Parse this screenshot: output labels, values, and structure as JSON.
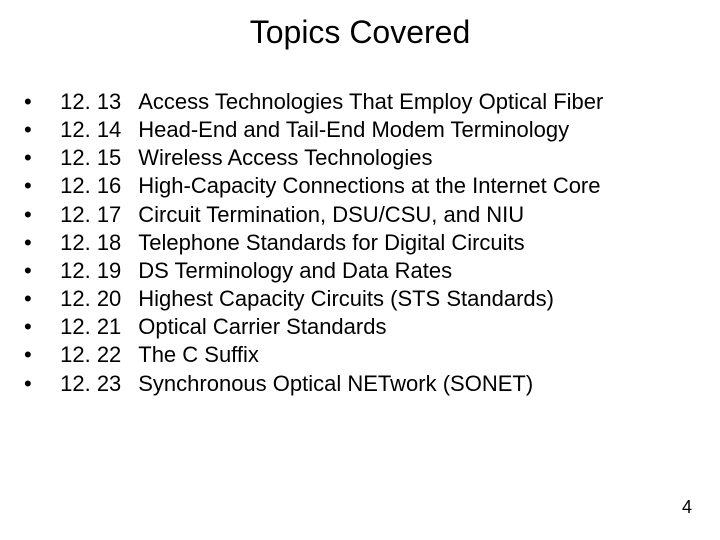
{
  "title": "Topics Covered",
  "page_number": "4",
  "bullet_glyph": "•",
  "items": [
    {
      "num": "12. 13",
      "text": "Access Technologies That Employ Optical Fiber"
    },
    {
      "num": "12. 14",
      "text": "Head-End and Tail-End Modem Terminology"
    },
    {
      "num": "12. 15",
      "text": "Wireless Access Technologies"
    },
    {
      "num": "12. 16",
      "text": "High-Capacity Connections at the Internet Core"
    },
    {
      "num": "12. 17",
      "text": "Circuit Termination, DSU/CSU, and NIU"
    },
    {
      "num": "12. 18",
      "text": "Telephone Standards for Digital Circuits"
    },
    {
      "num": "12. 19",
      "text": "DS Terminology and Data Rates"
    },
    {
      "num": "12. 20",
      "text": "Highest Capacity Circuits (STS Standards)"
    },
    {
      "num": "12. 21",
      "text": "Optical Carrier Standards"
    },
    {
      "num": "12. 22",
      "text": "The C Suffix"
    },
    {
      "num": "12. 23",
      "text": "Synchronous Optical NETwork (SONET)"
    }
  ],
  "style": {
    "background_color": "#ffffff",
    "text_color": "#000000",
    "title_fontsize": 32,
    "body_fontsize": 22,
    "line_height": 1.28,
    "font_family": "Arial"
  }
}
